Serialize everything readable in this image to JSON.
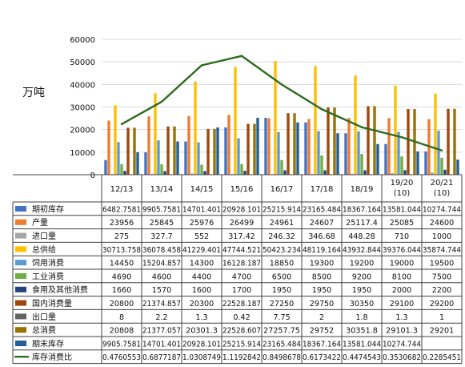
{
  "chart_data": {
    "type": "bar",
    "ylabel": "万吨",
    "ylim": [
      0,
      60000
    ],
    "yticks": [
      0,
      10000,
      20000,
      30000,
      40000,
      50000,
      60000
    ],
    "categories": [
      "12/13",
      "13/14",
      "14/15",
      "15/16",
      "16/17",
      "17/18",
      "18/19",
      "19/20 (10)",
      "20/21 (10)"
    ],
    "category_labels": [
      [
        "12/13"
      ],
      [
        "13/14"
      ],
      [
        "14/15"
      ],
      [
        "15/16"
      ],
      [
        "16/17"
      ],
      [
        "17/18"
      ],
      [
        "18/19"
      ],
      [
        "19/20",
        "(10)"
      ],
      [
        "20/21",
        "(10)"
      ]
    ],
    "grid": true,
    "series": [
      {
        "name": "期初库存",
        "color": "#4472c4",
        "kind": "bar",
        "values": [
          6482.7581,
          9905.7581,
          14701.401,
          20928.101,
          25215.914,
          23165.484,
          18367.164,
          13581.044,
          10274.744
        ],
        "labels": [
          "6482.7581",
          "9905.7581",
          "14701.401",
          "20928.101",
          "25215.914",
          "23165.484",
          "18367.164",
          "13581.044",
          "10274.744"
        ]
      },
      {
        "name": "产量",
        "color": "#ed7d31",
        "kind": "bar",
        "values": [
          23956,
          25845,
          25976,
          26499,
          24961,
          24607,
          25117.4,
          25085,
          24600
        ],
        "labels": [
          "23956",
          "25845",
          "25976",
          "26499",
          "24961",
          "24607",
          "25117.4",
          "25085",
          "24600"
        ]
      },
      {
        "name": "进口量",
        "color": "#a5a5a5",
        "kind": "bar",
        "values": [
          275,
          327.7,
          552,
          317.42,
          246.32,
          346.68,
          448.28,
          710,
          1000
        ],
        "labels": [
          "275",
          "327.7",
          "552",
          "317.42",
          "246.32",
          "346.68",
          "448.28",
          "710",
          "1000"
        ]
      },
      {
        "name": "总供给",
        "color": "#ffc000",
        "kind": "bar",
        "values": [
          30713.758,
          36078.458,
          41229.401,
          47744.521,
          50423.234,
          48119.164,
          43932.844,
          39376.044,
          35874.744
        ],
        "labels": [
          "30713.758",
          "36078.458",
          "41229.401",
          "47744.521",
          "50423.234",
          "48119.164",
          "43932.844",
          "39376.044",
          "35874.744"
        ]
      },
      {
        "name": "饲用消费",
        "color": "#5b9bd5",
        "kind": "bar",
        "values": [
          14450,
          15204.857,
          14300,
          16128.187,
          18850,
          19300,
          19200,
          19000,
          19500
        ],
        "labels": [
          "14450",
          "15204.857",
          "14300",
          "16128.187",
          "18850",
          "19300",
          "19200",
          "19000",
          "19500"
        ]
      },
      {
        "name": "工业消费",
        "color": "#70ad47",
        "kind": "bar",
        "values": [
          4690,
          4600,
          4400,
          4700,
          6500,
          8500,
          9200,
          8100,
          7500
        ],
        "labels": [
          "4690",
          "4600",
          "4400",
          "4700",
          "6500",
          "8500",
          "9200",
          "8100",
          "7500"
        ]
      },
      {
        "name": "食用及其他消费",
        "color": "#264478",
        "kind": "bar",
        "values": [
          1660,
          1570,
          1600,
          1700,
          1950,
          1950,
          1950,
          2000,
          2200
        ],
        "labels": [
          "1660",
          "1570",
          "1600",
          "1700",
          "1950",
          "1950",
          "1950",
          "2000",
          "2200"
        ]
      },
      {
        "name": "国内消费量",
        "color": "#9e480e",
        "kind": "bar",
        "values": [
          20800,
          21374.857,
          20300,
          22528.187,
          27250,
          29750,
          30350,
          29100,
          29200
        ],
        "labels": [
          "20800",
          "21374.857",
          "20300",
          "22528.187",
          "27250",
          "29750",
          "30350",
          "29100",
          "29200"
        ]
      },
      {
        "name": "出口量",
        "color": "#636363",
        "kind": "bar",
        "values": [
          8,
          2.2,
          1.3,
          0.42,
          7.75,
          2,
          1.8,
          1.3,
          1
        ],
        "labels": [
          "8",
          "2.2",
          "1.3",
          "0.42",
          "7.75",
          "2",
          "1.8",
          "1.3",
          "1"
        ]
      },
      {
        "name": "总消费",
        "color": "#997300",
        "kind": "bar",
        "values": [
          20808,
          21377.057,
          20301.3,
          22528.607,
          27257.75,
          29752,
          30351.8,
          29101.3,
          29201
        ],
        "labels": [
          "20808",
          "21377.057",
          "20301.3",
          "22528.607",
          "27257.75",
          "29752",
          "30351.8",
          "29101.3",
          "29201"
        ]
      },
      {
        "name": "期末库存",
        "color": "#255e91",
        "kind": "bar",
        "values": [
          9905.7581,
          14701.401,
          20928.101,
          25215.914,
          23165.484,
          18367.164,
          13581.044,
          10274.744,
          6673.744
        ],
        "labels": [
          "9905.7581",
          "14701.401",
          "20928.101",
          "25215.914",
          "23165.484",
          "18367.164",
          "13581.044",
          "10274.744",
          ""
        ]
      },
      {
        "name": "库存消费比",
        "color": "#2e6b1e",
        "kind": "line",
        "scale": 47000,
        "values": [
          0.4760553,
          0.6877187,
          1.0308749,
          1.1192842,
          0.8498678,
          0.6173422,
          0.4474543,
          0.3530682,
          0.2285451
        ],
        "labels": [
          "0.4760553",
          "0.6877187",
          "1.0308749",
          "1.1192842",
          "0.8498678",
          "0.6173422",
          "0.4474543",
          "0.3530682",
          "0.2285451"
        ]
      }
    ]
  }
}
